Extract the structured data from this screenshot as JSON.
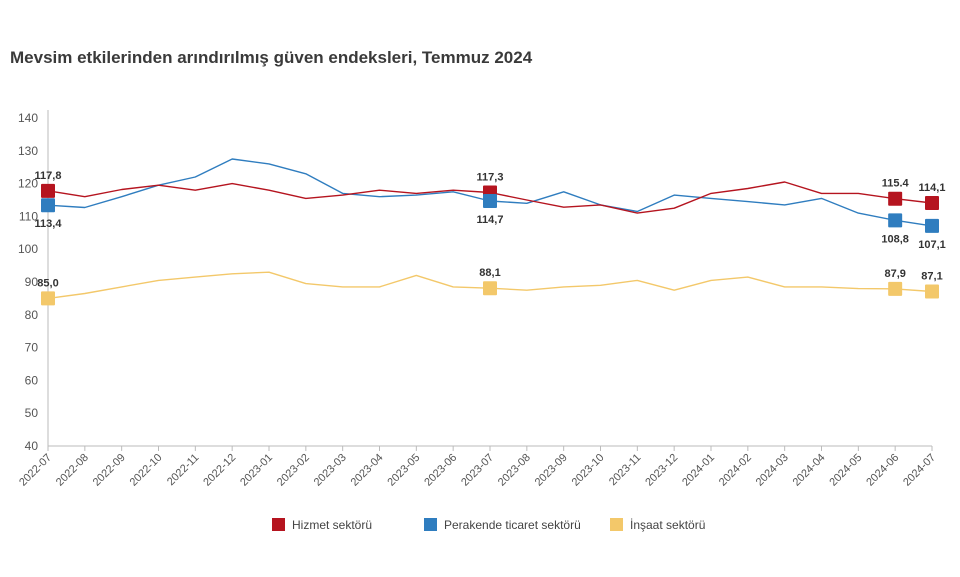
{
  "title": "Mevsim etkilerinden arındırılmış güven endeksleri, Temmuz 2024",
  "chart_data": {
    "type": "line",
    "title": "Mevsim etkilerinden arındırılmış güven endeksleri, Temmuz 2024",
    "xlabel": "",
    "ylabel": "",
    "ylim": [
      40,
      140
    ],
    "yticks": [
      "40",
      "50",
      "60",
      "70",
      "80",
      "90",
      "100",
      "110",
      "120",
      "130",
      "140"
    ],
    "grid": false,
    "legend_position": "bottom",
    "categories": [
      "2022-07",
      "2022-08",
      "2022-09",
      "2022-10",
      "2022-11",
      "2022-12",
      "2023-01",
      "2023-02",
      "2023-03",
      "2023-04",
      "2023-05",
      "2023-06",
      "2023-07",
      "2023-08",
      "2023-09",
      "2023-10",
      "2023-11",
      "2023-12",
      "2024-01",
      "2024-02",
      "2024-03",
      "2024-04",
      "2024-05",
      "2024-06",
      "2024-07"
    ],
    "series": [
      {
        "name": "Hizmet sektörü",
        "color": "#b5141f",
        "values": [
          117.8,
          116.0,
          118.2,
          119.5,
          118.0,
          120.0,
          118.0,
          115.5,
          116.5,
          118.0,
          117.0,
          118.0,
          117.3,
          115.0,
          112.8,
          113.5,
          111.0,
          112.5,
          117.0,
          118.5,
          120.5,
          117.0,
          117.0,
          115.4,
          114.1
        ]
      },
      {
        "name": "Perakende ticaret sektörü",
        "color": "#2f7dbf",
        "values": [
          113.4,
          112.7,
          116.0,
          119.5,
          122.0,
          127.5,
          126.0,
          123.0,
          117.0,
          116.0,
          116.5,
          117.5,
          114.7,
          114.0,
          117.5,
          113.5,
          111.5,
          116.5,
          115.5,
          114.5,
          113.5,
          115.5,
          111.0,
          108.8,
          107.1
        ]
      },
      {
        "name": "İnşaat sektörü",
        "color": "#f3c86a",
        "values": [
          85.0,
          86.5,
          88.5,
          90.5,
          91.5,
          92.5,
          93.0,
          89.5,
          88.5,
          88.5,
          92.0,
          88.5,
          88.1,
          87.5,
          88.5,
          89.0,
          90.5,
          87.5,
          90.5,
          91.5,
          88.5,
          88.5,
          88.0,
          87.9,
          87.1
        ]
      }
    ],
    "annotations": [
      {
        "series": 0,
        "index": 0,
        "label": "117,8",
        "pos": "above"
      },
      {
        "series": 1,
        "index": 0,
        "label": "113,4",
        "pos": "below"
      },
      {
        "series": 2,
        "index": 0,
        "label": "85,0",
        "pos": "above"
      },
      {
        "series": 0,
        "index": 12,
        "label": "117,3",
        "pos": "above"
      },
      {
        "series": 1,
        "index": 12,
        "label": "114,7",
        "pos": "below"
      },
      {
        "series": 2,
        "index": 12,
        "label": "88,1",
        "pos": "above"
      },
      {
        "series": 0,
        "index": 23,
        "label": "115.4",
        "pos": "above"
      },
      {
        "series": 1,
        "index": 23,
        "label": "108,8",
        "pos": "below"
      },
      {
        "series": 2,
        "index": 23,
        "label": "87,9",
        "pos": "above"
      },
      {
        "series": 0,
        "index": 24,
        "label": "114,1",
        "pos": "above"
      },
      {
        "series": 1,
        "index": 24,
        "label": "107,1",
        "pos": "below"
      },
      {
        "series": 2,
        "index": 24,
        "label": "87,1",
        "pos": "above"
      }
    ]
  }
}
